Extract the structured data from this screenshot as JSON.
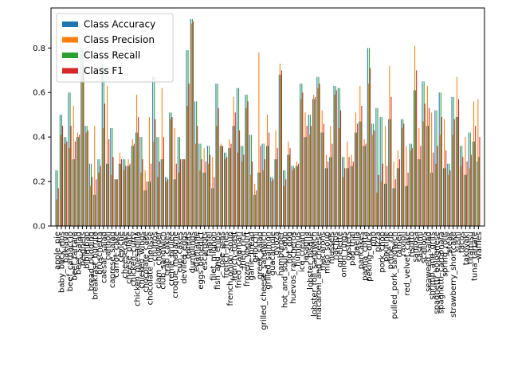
{
  "chart_data": {
    "type": "bar",
    "title": "",
    "xlabel": "",
    "ylabel": "",
    "ylim": [
      0,
      0.98
    ],
    "yticks": [
      0.0,
      0.2,
      0.4,
      0.6,
      0.8
    ],
    "ytick_labels": [
      "0.0",
      "0.2",
      "0.4",
      "0.6",
      "0.8"
    ],
    "grid": false,
    "legend_position": "top-left",
    "categories": [
      "apple_pie",
      "baby_back_ribs",
      "baklava",
      "beef_carpaccio",
      "beef_tartare",
      "beet_salad",
      "beignets",
      "bibimbap",
      "bread_pudding",
      "breakfast_burrito",
      "bruschetta",
      "caesar_salad",
      "cannoli",
      "caprese_salad",
      "carrot_cake",
      "ceviche",
      "cheesecake",
      "cheese_plate",
      "chicken_curry",
      "chicken_quesadilla",
      "chicken_wings",
      "chocolate_cake",
      "chocolate_mousse",
      "churros",
      "clam_chowder",
      "club_sandwich",
      "crab_cakes",
      "creme_brulee",
      "croque_madame",
      "cup_cakes",
      "deviled_eggs",
      "donuts",
      "dumplings",
      "edamame",
      "eggs_benedict",
      "escargots",
      "falafel",
      "filet_mignon",
      "fish_and_chips",
      "foie_gras",
      "french_fries",
      "french_onion_soup",
      "french_toast",
      "fried_calamari",
      "fried_rice",
      "frozen_yogurt",
      "garlic_bread",
      "gnocchi",
      "greek_salad",
      "grilled_cheese_sandwich",
      "grilled_salmon",
      "guacamole",
      "gyoza",
      "hamburger",
      "hot_and_sour_soup",
      "hot_dog",
      "huevos_rancheros",
      "hummus",
      "ice_cream",
      "lasagna",
      "lobster_bisque",
      "lobster_roll_sandwich",
      "macaroni_and_cheese",
      "macarons",
      "miso_soup",
      "mussels",
      "nachos",
      "omelette",
      "onion_rings",
      "oysters",
      "pad_thai",
      "paella",
      "pancakes",
      "panna_cotta",
      "peking_duck",
      "pho",
      "pizza",
      "pork_chop",
      "poutine",
      "prime_rib",
      "pulled_pork_sandwich",
      "ramen",
      "ravioli",
      "red_velvet_cake",
      "risotto",
      "samosa",
      "sashimi",
      "scallops",
      "seaweed_salad",
      "shrimp_and_grits",
      "spaghetti_bolognese",
      "spaghetti_carbonara",
      "spring_rolls",
      "steak",
      "strawberry_shortcake",
      "sushi",
      "tacos",
      "takoyaki",
      "tiramisu",
      "tuna_tartare",
      "waffles"
    ],
    "series": [
      {
        "name": "Class Accuracy",
        "color": "#1f77b4",
        "values": [
          0.25,
          0.5,
          0.4,
          0.6,
          0.3,
          0.4,
          0.8,
          0.45,
          0.28,
          0.14,
          0.3,
          0.73,
          0.28,
          0.44,
          0.21,
          0.28,
          0.3,
          0.27,
          0.36,
          0.42,
          0.4,
          0.16,
          0.2,
          0.67,
          0.4,
          0.3,
          0.22,
          0.51,
          0.21,
          0.4,
          0.3,
          0.79,
          0.93,
          0.56,
          0.37,
          0.24,
          0.36,
          0.17,
          0.64,
          0.36,
          0.33,
          0.35,
          0.45,
          0.62,
          0.36,
          0.59,
          0.41,
          0.14,
          0.24,
          0.37,
          0.36,
          0.22,
          0.3,
          0.68,
          0.25,
          0.32,
          0.27,
          0.27,
          0.64,
          0.4,
          0.5,
          0.57,
          0.67,
          0.42,
          0.26,
          0.31,
          0.63,
          0.62,
          0.31,
          0.26,
          0.27,
          0.42,
          0.47,
          0.36,
          0.8,
          0.46,
          0.53,
          0.49,
          0.19,
          0.48,
          0.17,
          0.26,
          0.48,
          0.18,
          0.37,
          0.61,
          0.3,
          0.65,
          0.45,
          0.24,
          0.52,
          0.6,
          0.26,
          0.28,
          0.58,
          0.49,
          0.36,
          0.23,
          0.42,
          0.38,
          0.29
        ]
      },
      {
        "name": "Class Precision",
        "color": "#ff7f0e",
        "values": [
          0.12,
          0.41,
          0.37,
          0.35,
          0.54,
          0.42,
          0.66,
          0.42,
          0.18,
          0.45,
          0.24,
          0.44,
          0.63,
          0.23,
          0.21,
          0.33,
          0.25,
          0.3,
          0.39,
          0.59,
          0.24,
          0.25,
          0.49,
          0.38,
          0.22,
          0.62,
          0.2,
          0.48,
          0.44,
          0.24,
          0.3,
          0.54,
          0.91,
          0.37,
          0.25,
          0.35,
          0.28,
          0.31,
          0.45,
          0.37,
          0.3,
          0.39,
          0.58,
          0.33,
          0.29,
          0.53,
          0.23,
          0.19,
          0.78,
          0.25,
          0.5,
          0.2,
          0.43,
          0.73,
          0.18,
          0.38,
          0.25,
          0.29,
          0.57,
          0.51,
          0.41,
          0.59,
          0.62,
          0.52,
          0.32,
          0.45,
          0.59,
          0.44,
          0.22,
          0.38,
          0.32,
          0.51,
          0.63,
          0.39,
          0.64,
          0.41,
          0.15,
          0.2,
          0.45,
          0.72,
          0.29,
          0.34,
          0.44,
          0.36,
          0.34,
          0.81,
          0.44,
          0.47,
          0.63,
          0.51,
          0.28,
          0.41,
          0.48,
          0.23,
          0.41,
          0.67,
          0.27,
          0.4,
          0.26,
          0.56,
          0.57
        ]
      },
      {
        "name": "Class Recall",
        "color": "#2ca02c",
        "values": [
          0.25,
          0.5,
          0.4,
          0.6,
          0.3,
          0.4,
          0.8,
          0.45,
          0.28,
          0.14,
          0.3,
          0.73,
          0.28,
          0.44,
          0.21,
          0.28,
          0.3,
          0.27,
          0.36,
          0.42,
          0.4,
          0.16,
          0.2,
          0.67,
          0.4,
          0.3,
          0.22,
          0.51,
          0.21,
          0.4,
          0.3,
          0.79,
          0.93,
          0.56,
          0.37,
          0.24,
          0.36,
          0.17,
          0.64,
          0.36,
          0.33,
          0.35,
          0.45,
          0.62,
          0.36,
          0.59,
          0.41,
          0.14,
          0.24,
          0.37,
          0.36,
          0.22,
          0.3,
          0.68,
          0.25,
          0.32,
          0.27,
          0.27,
          0.64,
          0.4,
          0.5,
          0.57,
          0.67,
          0.42,
          0.26,
          0.31,
          0.63,
          0.62,
          0.31,
          0.26,
          0.27,
          0.42,
          0.47,
          0.36,
          0.8,
          0.46,
          0.53,
          0.49,
          0.19,
          0.48,
          0.17,
          0.26,
          0.48,
          0.18,
          0.37,
          0.61,
          0.3,
          0.65,
          0.45,
          0.24,
          0.52,
          0.6,
          0.26,
          0.28,
          0.58,
          0.49,
          0.36,
          0.23,
          0.42,
          0.38,
          0.31
        ]
      },
      {
        "name": "Class F1",
        "color": "#d62728",
        "values": [
          0.17,
          0.45,
          0.38,
          0.45,
          0.38,
          0.41,
          0.72,
          0.43,
          0.22,
          0.21,
          0.27,
          0.55,
          0.39,
          0.31,
          0.21,
          0.3,
          0.27,
          0.28,
          0.37,
          0.49,
          0.3,
          0.2,
          0.28,
          0.48,
          0.29,
          0.4,
          0.21,
          0.49,
          0.28,
          0.3,
          0.3,
          0.64,
          0.92,
          0.45,
          0.3,
          0.29,
          0.32,
          0.22,
          0.53,
          0.36,
          0.31,
          0.37,
          0.51,
          0.43,
          0.32,
          0.56,
          0.29,
          0.16,
          0.36,
          0.3,
          0.42,
          0.21,
          0.35,
          0.7,
          0.21,
          0.35,
          0.26,
          0.28,
          0.6,
          0.45,
          0.45,
          0.58,
          0.64,
          0.46,
          0.29,
          0.37,
          0.61,
          0.52,
          0.26,
          0.31,
          0.29,
          0.46,
          0.54,
          0.37,
          0.71,
          0.43,
          0.23,
          0.28,
          0.27,
          0.58,
          0.21,
          0.3,
          0.46,
          0.24,
          0.35,
          0.7,
          0.36,
          0.55,
          0.53,
          0.33,
          0.36,
          0.49,
          0.34,
          0.25,
          0.48,
          0.57,
          0.31,
          0.29,
          0.32,
          0.45,
          0.4
        ]
      }
    ]
  }
}
